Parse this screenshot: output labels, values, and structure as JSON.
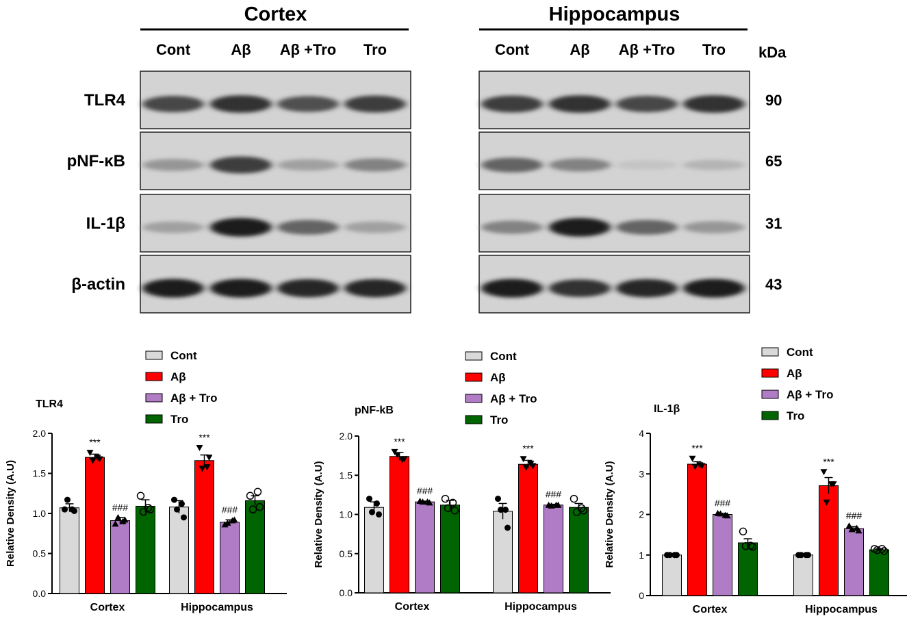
{
  "blot": {
    "panels": [
      {
        "title": "Cortex",
        "lanes": [
          "Cont",
          "Aβ",
          "Aβ +Tro",
          "Tro"
        ]
      },
      {
        "title": "Hippocampus",
        "lanes": [
          "Cont",
          "Aβ",
          "Aβ +Tro",
          "Tro"
        ]
      }
    ],
    "rows": [
      {
        "label": "TLR4",
        "kda": "90",
        "intensity": [
          [
            0.75,
            0.85,
            0.7,
            0.8
          ],
          [
            0.8,
            0.85,
            0.75,
            0.85
          ]
        ]
      },
      {
        "label": "pNF-κB",
        "kda": "65",
        "intensity": [
          [
            0.35,
            0.8,
            0.3,
            0.45
          ],
          [
            0.6,
            0.45,
            0.12,
            0.2
          ]
        ]
      },
      {
        "label": "IL-1β",
        "kda": "31",
        "intensity": [
          [
            0.3,
            0.95,
            0.6,
            0.3
          ],
          [
            0.45,
            0.95,
            0.6,
            0.35
          ]
        ]
      },
      {
        "label": "β-actin",
        "kda": "43",
        "intensity": [
          [
            0.95,
            0.95,
            0.9,
            0.9
          ],
          [
            0.95,
            0.85,
            0.9,
            0.95
          ]
        ]
      }
    ],
    "kda_header": "kDa"
  },
  "legend": {
    "entries": [
      "Cont",
      "Aβ",
      "Aβ + Tro",
      "Tro"
    ],
    "colors": [
      "#d9d9d9",
      "#ff0000",
      "#b07cc6",
      "#006400"
    ]
  },
  "chart_data": [
    {
      "type": "bar",
      "title": "TLR4",
      "ylabel": "Relative Density (A.U)",
      "ylim": [
        0,
        2.0
      ],
      "yticks": [
        "0.0",
        "0.5",
        "1.0",
        "1.5",
        "2.0"
      ],
      "categories": [
        "Cortex",
        "Hippocampus"
      ],
      "series": [
        {
          "name": "Cont",
          "values": [
            1.07,
            1.08
          ],
          "sem": [
            0.05,
            0.08
          ],
          "points": [
            [
              1.05,
              1.03,
              1.17,
              1.05
            ],
            [
              1.17,
              0.95,
              1.05,
              1.12
            ]
          ],
          "annotations": [
            "",
            ""
          ]
        },
        {
          "name": "Aβ",
          "values": [
            1.7,
            1.66
          ],
          "sem": [
            0.04,
            0.07
          ],
          "points": [
            [
              1.76,
              1.68,
              1.66,
              1.7
            ],
            [
              1.82,
              1.7,
              1.56,
              1.58
            ]
          ],
          "annotations": [
            "***",
            "***"
          ]
        },
        {
          "name": "Aβ + Tro",
          "values": [
            0.91,
            0.89
          ],
          "sem": [
            0.04,
            0.03
          ],
          "points": [
            [
              0.87,
              0.92,
              0.95,
              0.9
            ],
            [
              0.86,
              0.92,
              0.88,
              0.91
            ]
          ],
          "annotations": [
            "###",
            "###"
          ]
        },
        {
          "name": "Tro",
          "values": [
            1.09,
            1.16
          ],
          "sem": [
            0.08,
            0.06
          ],
          "points": [
            [
              1.22,
              1.05,
              1.02,
              1.07
            ],
            [
              1.22,
              1.08,
              1.05,
              1.27
            ]
          ],
          "annotations": [
            "",
            ""
          ]
        }
      ]
    },
    {
      "type": "bar",
      "title": "pNF-kB",
      "ylabel": "Relative Density (A.U)",
      "ylim": [
        0,
        2.0
      ],
      "yticks": [
        "0.0",
        "0.5",
        "1.0",
        "1.5",
        "2.0"
      ],
      "categories": [
        "Cortex",
        "Hippocampus"
      ],
      "series": [
        {
          "name": "Cont",
          "values": [
            1.09,
            1.04
          ],
          "sem": [
            0.07,
            0.1
          ],
          "points": [
            [
              1.2,
              1.0,
              1.03,
              1.14
            ],
            [
              1.2,
              0.83,
              1.06,
              1.06
            ]
          ],
          "annotations": [
            "",
            ""
          ]
        },
        {
          "name": "Aβ",
          "values": [
            1.74,
            1.64
          ],
          "sem": [
            0.05,
            0.05
          ],
          "points": [
            [
              1.8,
              1.71,
              1.76,
              1.7
            ],
            [
              1.71,
              1.62,
              1.6,
              1.65
            ]
          ],
          "annotations": [
            "***",
            "***"
          ]
        },
        {
          "name": "Aβ + Tro",
          "values": [
            1.16,
            1.12
          ],
          "sem": [
            0.01,
            0.01
          ],
          "points": [
            [
              1.17,
              1.15,
              1.16,
              1.16
            ],
            [
              1.12,
              1.12,
              1.11,
              1.12
            ]
          ],
          "annotations": [
            "###",
            "###"
          ]
        },
        {
          "name": "Tro",
          "values": [
            1.12,
            1.09
          ],
          "sem": [
            0.06,
            0.05
          ],
          "points": [
            [
              1.2,
              1.05,
              1.08,
              1.15
            ],
            [
              1.2,
              1.05,
              1.03,
              1.08
            ]
          ],
          "annotations": [
            "",
            ""
          ]
        }
      ]
    },
    {
      "type": "bar",
      "title": "IL-1β",
      "ylabel": "Relative Density (A.U)",
      "ylim": [
        0,
        4
      ],
      "yticks": [
        "0",
        "1",
        "2",
        "3",
        "4"
      ],
      "categories": [
        "Cortex",
        "Hippocampus"
      ],
      "series": [
        {
          "name": "Cont",
          "values": [
            1.0,
            1.0
          ],
          "sem": [
            0.01,
            0.01
          ],
          "points": [
            [
              1.0,
              1.0,
              1.0,
              1.0
            ],
            [
              1.0,
              1.0,
              1.0,
              1.0
            ]
          ],
          "annotations": [
            "",
            ""
          ]
        },
        {
          "name": "Aβ",
          "values": [
            3.24,
            2.71
          ],
          "sem": [
            0.06,
            0.2
          ],
          "points": [
            [
              3.38,
              3.2,
              3.18,
              3.22
            ],
            [
              3.05,
              2.75,
              2.3,
              2.75
            ]
          ],
          "annotations": [
            "***",
            "***"
          ]
        },
        {
          "name": "Aβ + Tro",
          "values": [
            2.0,
            1.65
          ],
          "sem": [
            0.03,
            0.05
          ],
          "points": [
            [
              2.03,
              1.97,
              2.02,
              1.98
            ],
            [
              1.72,
              1.6,
              1.63,
              1.66
            ]
          ],
          "annotations": [
            "###",
            "###"
          ]
        },
        {
          "name": "Tro",
          "values": [
            1.3,
            1.13
          ],
          "sem": [
            0.1,
            0.02
          ],
          "points": [
            [
              1.58,
              1.2,
              1.22,
              1.23
            ],
            [
              1.15,
              1.1,
              1.12,
              1.15
            ]
          ],
          "annotations": [
            "",
            ""
          ]
        }
      ]
    }
  ]
}
